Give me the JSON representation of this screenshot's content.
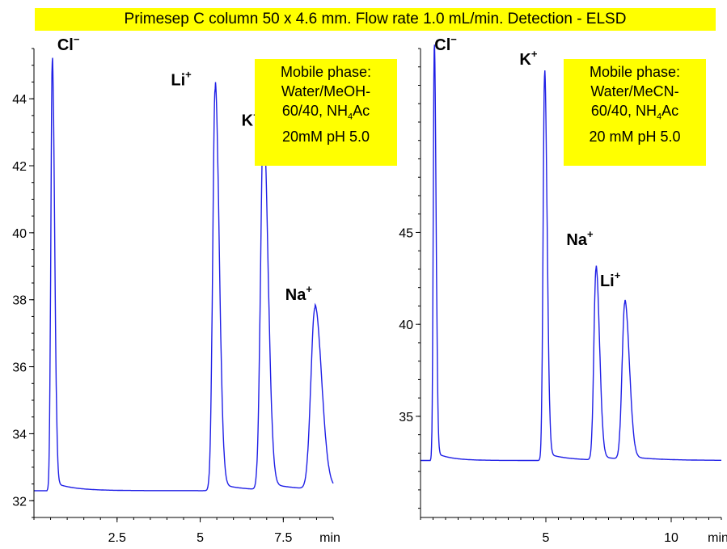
{
  "header": {
    "conditions": "Primesep C column 50 x 4.6 mm. Flow rate 1.0 mL/min. Detection - ELSD"
  },
  "chart_data": [
    {
      "type": "line",
      "title": "",
      "xlabel": "min",
      "ylabel": "",
      "xlim": [
        0,
        9
      ],
      "ylim": [
        31.5,
        45.5
      ],
      "xticks": [
        "2.5",
        "5",
        "7.5",
        "min"
      ],
      "yticks": [
        "32",
        "34",
        "36",
        "38",
        "40",
        "42",
        "44"
      ],
      "mobile_phase": {
        "line1": "Mobile phase:",
        "line2": "Water/MeOH-",
        "line3_pre": "60/40, NH",
        "line3_sub": "4",
        "line3_post": "Ac",
        "line4": "20mM pH 5.0"
      },
      "baseline": 32.3,
      "peaks": [
        {
          "ion": "Cl",
          "charge": "−",
          "rt": 0.55,
          "height": 45.1
        },
        {
          "ion": "Li",
          "charge": "+",
          "rt": 5.45,
          "height": 44.3
        },
        {
          "ion": "K",
          "charge": "+",
          "rt": 6.9,
          "height": 43.2
        },
        {
          "ion": "Na",
          "charge": "+",
          "rt": 8.45,
          "height": 37.7
        }
      ]
    },
    {
      "type": "line",
      "title": "",
      "xlabel": "min",
      "ylabel": "",
      "xlim": [
        0,
        12
      ],
      "ylim": [
        29.5,
        55
      ],
      "xticks": [
        "5",
        "10",
        "min"
      ],
      "yticks": [
        "35",
        "40",
        "45"
      ],
      "mobile_phase": {
        "line1": "Mobile phase:",
        "line2": "Water/MeCN-",
        "line3_pre": "60/40, NH",
        "line3_sub": "4",
        "line3_post": "Ac",
        "line4": "20 mM pH 5.0"
      },
      "baseline": 32.6,
      "peaks": [
        {
          "ion": "Cl",
          "charge": "−",
          "rt": 0.55,
          "height": 55.0
        },
        {
          "ion": "K",
          "charge": "+",
          "rt": 4.95,
          "height": 53.5
        },
        {
          "ion": "Na",
          "charge": "+",
          "rt": 7.0,
          "height": 43.0
        },
        {
          "ion": "Li",
          "charge": "+",
          "rt": 8.15,
          "height": 41.1
        }
      ]
    }
  ]
}
